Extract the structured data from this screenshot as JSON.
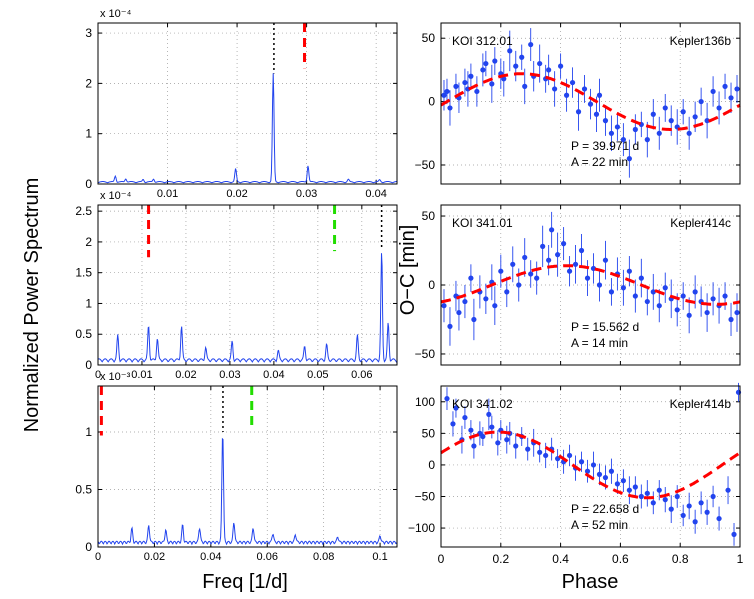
{
  "figure": {
    "ylabel_left": "Normalized Power Spectrum",
    "xlabel_left": "Freq [1/d]",
    "ylabel_right": "O−C [min]",
    "xlabel_right": "Phase"
  },
  "chart_data": [
    {
      "type": "line",
      "exponent_label": "x 10⁻⁴",
      "xlim": [
        0,
        0.043
      ],
      "ylim": [
        0,
        3.2
      ],
      "xticks": [
        0.01,
        0.02,
        0.03,
        0.04
      ],
      "xtick_labels": [
        "0.01",
        "0.02",
        "0.03",
        "0.04"
      ],
      "yticks": [
        0,
        1,
        2,
        3
      ],
      "ytick_labels": [
        "0",
        "1",
        "2",
        "3"
      ],
      "grid": true,
      "base_level": 0.05,
      "peaks": [
        [
          0.0025,
          0.12
        ],
        [
          0.004,
          0.07
        ],
        [
          0.0065,
          0.05
        ],
        [
          0.008,
          0.06
        ],
        [
          0.0198,
          0.26
        ],
        [
          0.0252,
          2.15
        ],
        [
          0.0302,
          0.33
        ],
        [
          0.036,
          0.05
        ],
        [
          0.0405,
          0.04
        ]
      ],
      "markers": [
        {
          "x": 0.0253,
          "y0": 2.2,
          "y1": 3.2,
          "color": "#000000",
          "style": "dotted"
        },
        {
          "x": 0.0297,
          "y0": 2.3,
          "y1": 3.2,
          "color": "#ff0000",
          "style": "dashed"
        }
      ]
    },
    {
      "type": "line",
      "exponent_label": "x 10⁻⁴",
      "xlim": [
        0,
        0.068
      ],
      "ylim": [
        0,
        2.6
      ],
      "xticks": [
        0,
        0.01,
        0.02,
        0.03,
        0.04,
        0.05,
        0.06
      ],
      "xtick_labels": [
        "0",
        "0.01",
        "0.02",
        "0.03",
        "0.04",
        "0.05",
        "0.06"
      ],
      "yticks": [
        0,
        0.5,
        1,
        1.5,
        2,
        2.5
      ],
      "ytick_labels": [
        "0",
        "0.5",
        "1",
        "1.5",
        "2",
        "2.5"
      ],
      "grid": true,
      "base_level": 0.1,
      "peaks": [
        [
          0.0045,
          0.4
        ],
        [
          0.0115,
          0.56
        ],
        [
          0.0135,
          0.35
        ],
        [
          0.019,
          0.55
        ],
        [
          0.0245,
          0.2
        ],
        [
          0.0305,
          0.3
        ],
        [
          0.041,
          0.15
        ],
        [
          0.047,
          0.22
        ],
        [
          0.052,
          0.25
        ],
        [
          0.059,
          0.4
        ],
        [
          0.0645,
          1.75
        ],
        [
          0.066,
          0.6
        ]
      ],
      "markers": [
        {
          "x": 0.0115,
          "y0": 1.75,
          "y1": 2.6,
          "color": "#ff0000",
          "style": "dashed"
        },
        {
          "x": 0.0538,
          "y0": 1.85,
          "y1": 2.6,
          "color": "#22dd00",
          "style": "dashed"
        },
        {
          "x": 0.0645,
          "y0": 1.9,
          "y1": 2.6,
          "color": "#000000",
          "style": "dotted"
        }
      ]
    },
    {
      "type": "line",
      "exponent_label": "x 10⁻³",
      "xlim": [
        0,
        0.106
      ],
      "ylim": [
        0,
        1.4
      ],
      "xticks": [
        0,
        0.02,
        0.04,
        0.06,
        0.08,
        0.1
      ],
      "xtick_labels": [
        "0",
        "0.02",
        "0.04",
        "0.06",
        "0.08",
        "0.1"
      ],
      "yticks": [
        0,
        0.5,
        1
      ],
      "ytick_labels": [
        "0",
        "0.5",
        "1"
      ],
      "grid": true,
      "base_level": 0.05,
      "peaks": [
        [
          0.012,
          0.12
        ],
        [
          0.018,
          0.15
        ],
        [
          0.024,
          0.11
        ],
        [
          0.03,
          0.15
        ],
        [
          0.036,
          0.13
        ],
        [
          0.0442,
          0.97
        ],
        [
          0.0482,
          0.18
        ],
        [
          0.055,
          0.13
        ],
        [
          0.062,
          0.08
        ],
        [
          0.07,
          0.07
        ],
        [
          0.085,
          0.05
        ],
        [
          0.1,
          0.06
        ]
      ],
      "markers": [
        {
          "x": 0.0012,
          "y0": 0.97,
          "y1": 1.4,
          "color": "#ff0000",
          "style": "dashed"
        },
        {
          "x": 0.0443,
          "y0": 1.0,
          "y1": 1.4,
          "color": "#000000",
          "style": "dotted"
        },
        {
          "x": 0.0545,
          "y0": 1.06,
          "y1": 1.4,
          "color": "#22dd00",
          "style": "dashed"
        }
      ]
    },
    {
      "type": "scatter",
      "name_left": "KOI 312.01",
      "name_right": "Kepler136b",
      "period_label": "P = 39.971 d",
      "amp_label": "A = 22 min",
      "xlim": [
        0,
        1
      ],
      "ylim": [
        -65,
        62
      ],
      "yticks": [
        -50,
        0,
        50
      ],
      "ytick_labels": [
        "−50",
        "0",
        "50"
      ],
      "xticks": [
        0,
        0.2,
        0.4,
        0.6,
        0.8,
        1
      ],
      "xtick_labels": [],
      "grid": true,
      "model": {
        "amplitude": 22,
        "peak_phase": 0.27
      },
      "x": [
        0.01,
        0.02,
        0.03,
        0.05,
        0.06,
        0.08,
        0.09,
        0.1,
        0.12,
        0.14,
        0.15,
        0.17,
        0.18,
        0.2,
        0.21,
        0.23,
        0.25,
        0.27,
        0.28,
        0.3,
        0.31,
        0.33,
        0.35,
        0.36,
        0.38,
        0.4,
        0.42,
        0.44,
        0.46,
        0.48,
        0.5,
        0.52,
        0.53,
        0.55,
        0.57,
        0.59,
        0.61,
        0.63,
        0.65,
        0.67,
        0.69,
        0.71,
        0.73,
        0.75,
        0.77,
        0.79,
        0.81,
        0.83,
        0.85,
        0.87,
        0.89,
        0.91,
        0.93,
        0.95,
        0.97,
        0.99
      ],
      "y": [
        5,
        8,
        -5,
        12,
        3,
        15,
        10,
        20,
        8,
        25,
        30,
        14,
        32,
        22,
        18,
        40,
        28,
        35,
        12,
        45,
        20,
        30,
        18,
        25,
        10,
        28,
        5,
        15,
        -8,
        10,
        -2,
        -10,
        5,
        -15,
        -25,
        -20,
        -30,
        -45,
        -22,
        -18,
        -30,
        -10,
        -25,
        -5,
        -15,
        -20,
        -8,
        -25,
        -12,
        0,
        -15,
        8,
        -5,
        12,
        3,
        10
      ],
      "err": [
        12,
        10,
        14,
        10,
        12,
        11,
        14,
        10,
        12,
        13,
        10,
        15,
        11,
        12,
        14,
        16,
        12,
        10,
        14,
        13,
        12,
        15,
        11,
        12,
        14,
        10,
        13,
        12,
        15,
        11,
        12,
        14,
        13,
        12,
        14,
        11,
        13,
        15,
        12,
        10,
        14,
        12,
        13,
        11,
        12,
        14,
        10,
        13,
        12,
        11,
        14,
        12,
        13,
        10,
        12,
        11
      ]
    },
    {
      "type": "scatter",
      "name_left": "KOI 341.01",
      "name_right": "Kepler414c",
      "period_label": "P = 15.562 d",
      "amp_label": "A = 14 min",
      "xlim": [
        0,
        1
      ],
      "ylim": [
        -58,
        58
      ],
      "yticks": [
        -50,
        0,
        50
      ],
      "ytick_labels": [
        "−50",
        "0",
        "50"
      ],
      "xticks": [
        0,
        0.2,
        0.4,
        0.6,
        0.8,
        1
      ],
      "xtick_labels": [],
      "grid": true,
      "model": {
        "amplitude": 14,
        "peak_phase": 0.42
      },
      "x": [
        0.01,
        0.03,
        0.05,
        0.06,
        0.08,
        0.1,
        0.11,
        0.13,
        0.15,
        0.17,
        0.18,
        0.2,
        0.22,
        0.24,
        0.26,
        0.28,
        0.3,
        0.32,
        0.34,
        0.36,
        0.37,
        0.39,
        0.41,
        0.43,
        0.45,
        0.47,
        0.49,
        0.51,
        0.53,
        0.55,
        0.57,
        0.59,
        0.61,
        0.63,
        0.65,
        0.67,
        0.69,
        0.71,
        0.73,
        0.75,
        0.77,
        0.79,
        0.81,
        0.83,
        0.85,
        0.87,
        0.89,
        0.91,
        0.93,
        0.95,
        0.97,
        0.99
      ],
      "y": [
        -15,
        -30,
        -8,
        -20,
        -12,
        5,
        -25,
        -5,
        -10,
        2,
        -15,
        10,
        -5,
        15,
        0,
        20,
        8,
        5,
        28,
        18,
        40,
        22,
        30,
        10,
        15,
        25,
        5,
        12,
        0,
        18,
        -5,
        8,
        -2,
        10,
        -8,
        5,
        -12,
        -5,
        -15,
        -2,
        -10,
        -18,
        -8,
        -22,
        -5,
        -12,
        -20,
        -10,
        -15,
        -8,
        -25,
        -20
      ],
      "err": [
        12,
        14,
        11,
        13,
        12,
        10,
        15,
        12,
        11,
        13,
        14,
        12,
        11,
        13,
        12,
        14,
        10,
        12,
        15,
        11,
        13,
        16,
        12,
        11,
        14,
        12,
        13,
        11,
        12,
        14,
        10,
        12,
        13,
        11,
        12,
        14,
        10,
        13,
        12,
        11,
        14,
        12,
        10,
        13,
        12,
        11,
        14,
        12,
        13,
        10,
        12,
        14
      ]
    },
    {
      "type": "scatter",
      "name_left": "KOI 341.02",
      "name_right": "Kepler414b",
      "period_label": "P = 22.658 d",
      "amp_label": "A = 52 min",
      "xlim": [
        0,
        1
      ],
      "ylim": [
        -130,
        125
      ],
      "yticks": [
        -100,
        -50,
        0,
        50,
        100
      ],
      "ytick_labels": [
        "−100",
        "−50",
        "0",
        "50",
        "100"
      ],
      "xticks": [
        0,
        0.2,
        0.4,
        0.6,
        0.8,
        1
      ],
      "xtick_labels": [
        "0",
        "0.2",
        "0.4",
        "0.6",
        "0.8",
        "1"
      ],
      "grid": true,
      "model": {
        "amplitude": 52,
        "peak_phase": 0.19
      },
      "x": [
        0.02,
        0.04,
        0.05,
        0.07,
        0.08,
        0.1,
        0.11,
        0.13,
        0.14,
        0.16,
        0.17,
        0.19,
        0.2,
        0.22,
        0.23,
        0.25,
        0.27,
        0.29,
        0.31,
        0.33,
        0.35,
        0.37,
        0.39,
        0.41,
        0.43,
        0.45,
        0.47,
        0.49,
        0.51,
        0.53,
        0.55,
        0.57,
        0.59,
        0.61,
        0.63,
        0.65,
        0.67,
        0.69,
        0.71,
        0.73,
        0.75,
        0.77,
        0.79,
        0.81,
        0.83,
        0.85,
        0.87,
        0.89,
        0.91,
        0.93,
        0.96,
        0.98,
        0.995
      ],
      "y": [
        105,
        65,
        90,
        40,
        75,
        55,
        30,
        50,
        45,
        80,
        60,
        35,
        55,
        40,
        50,
        30,
        45,
        25,
        35,
        20,
        15,
        25,
        10,
        5,
        15,
        -5,
        5,
        -10,
        0,
        -15,
        -20,
        -10,
        -30,
        -25,
        -40,
        -35,
        -50,
        -45,
        -60,
        -40,
        -55,
        -70,
        -50,
        -80,
        -65,
        -90,
        -60,
        -75,
        -50,
        -85,
        -40,
        -110,
        115
      ],
      "err": [
        18,
        20,
        15,
        22,
        18,
        16,
        20,
        19,
        15,
        25,
        18,
        20,
        16,
        22,
        18,
        20,
        15,
        18,
        22,
        16,
        20,
        18,
        15,
        19,
        17,
        20,
        16,
        18,
        21,
        17,
        19,
        20,
        16,
        18,
        22,
        17,
        19,
        21,
        18,
        16,
        20,
        22,
        18,
        17,
        21,
        19,
        18,
        20,
        17,
        19,
        22,
        18,
        15
      ]
    }
  ]
}
